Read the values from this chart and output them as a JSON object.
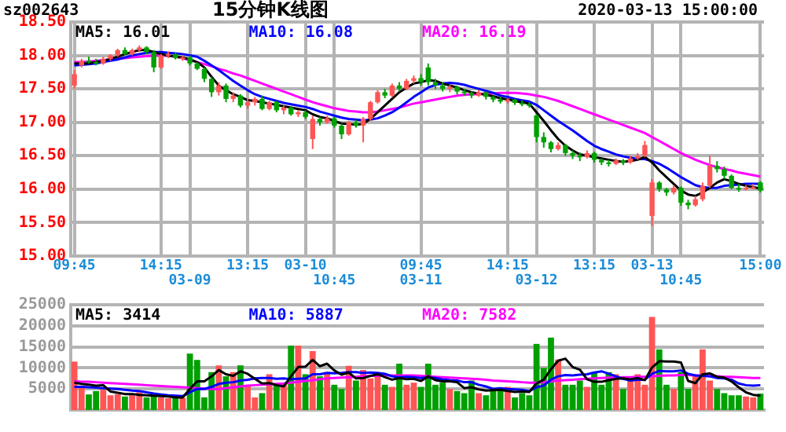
{
  "chart_data": [
    {
      "type": "candlestick",
      "title": "15分钟K线图",
      "subtitle": "2020-03-13 15:00:00",
      "annotations": [
        "sz002643"
      ],
      "categories": [
        "09:45",
        null,
        null,
        null,
        null,
        null,
        null,
        null,
        null,
        null,
        null,
        null,
        "14:15",
        null,
        null,
        null,
        "03-09",
        null,
        null,
        null,
        null,
        null,
        null,
        null,
        "13:15",
        null,
        null,
        null,
        null,
        null,
        null,
        null,
        "03-10",
        null,
        null,
        null,
        "10:45",
        null,
        null,
        null,
        null,
        null,
        null,
        null,
        null,
        null,
        null,
        null,
        "09:45\n03-11",
        null,
        null,
        null,
        null,
        null,
        null,
        null,
        null,
        null,
        null,
        null,
        "14:15",
        null,
        null,
        null,
        "03-12",
        null,
        null,
        null,
        null,
        null,
        null,
        null,
        "13:15",
        null,
        null,
        null,
        null,
        null,
        null,
        null,
        "03-13",
        null,
        null,
        null,
        "10:45",
        null,
        null,
        null,
        null,
        null,
        null,
        null,
        null,
        null,
        null,
        "15:00"
      ],
      "ohlc": [
        [
          17.55,
          17.78,
          17.5,
          17.72
        ],
        [
          17.85,
          17.95,
          17.82,
          17.92
        ],
        [
          17.92,
          17.98,
          17.88,
          17.9
        ],
        [
          17.9,
          17.95,
          17.85,
          17.88
        ],
        [
          17.88,
          17.98,
          17.86,
          17.95
        ],
        [
          17.95,
          18.02,
          17.92,
          18.0
        ],
        [
          18.0,
          18.1,
          17.98,
          18.08
        ],
        [
          18.08,
          18.12,
          18.0,
          18.02
        ],
        [
          18.02,
          18.1,
          18.0,
          18.08
        ],
        [
          18.08,
          18.15,
          18.05,
          18.12
        ],
        [
          18.12,
          18.14,
          18.02,
          18.05
        ],
        [
          18.05,
          18.08,
          17.75,
          17.82
        ],
        [
          17.82,
          18.02,
          17.8,
          18.0
        ],
        [
          18.0,
          18.06,
          17.96,
          18.02
        ],
        [
          18.02,
          18.04,
          17.94,
          17.96
        ],
        [
          17.96,
          18.0,
          17.92,
          17.97
        ],
        [
          17.97,
          18.0,
          17.85,
          17.88
        ],
        [
          17.88,
          17.9,
          17.78,
          17.8
        ],
        [
          17.8,
          17.82,
          17.6,
          17.65
        ],
        [
          17.65,
          17.68,
          17.38,
          17.45
        ],
        [
          17.45,
          17.6,
          17.4,
          17.55
        ],
        [
          17.55,
          17.58,
          17.3,
          17.35
        ],
        [
          17.35,
          17.45,
          17.3,
          17.4
        ],
        [
          17.4,
          17.42,
          17.22,
          17.25
        ],
        [
          17.25,
          17.35,
          17.2,
          17.3
        ],
        [
          17.3,
          17.38,
          17.25,
          17.35
        ],
        [
          17.35,
          17.4,
          17.18,
          17.2
        ],
        [
          17.2,
          17.32,
          17.18,
          17.3
        ],
        [
          17.3,
          17.32,
          17.15,
          17.18
        ],
        [
          17.18,
          17.25,
          17.12,
          17.22
        ],
        [
          17.22,
          17.24,
          17.1,
          17.12
        ],
        [
          17.12,
          17.18,
          17.08,
          17.15
        ],
        [
          17.15,
          17.18,
          17.05,
          17.08
        ],
        [
          16.75,
          17.1,
          16.6,
          17.05
        ],
        [
          17.05,
          17.08,
          16.95,
          17.0
        ],
        [
          17.0,
          17.1,
          16.98,
          17.06
        ],
        [
          17.06,
          17.08,
          16.92,
          16.95
        ],
        [
          16.95,
          16.98,
          16.75,
          16.82
        ],
        [
          16.82,
          17.02,
          16.8,
          17.0
        ],
        [
          17.0,
          17.04,
          16.92,
          16.95
        ],
        [
          16.95,
          17.08,
          16.7,
          17.05
        ],
        [
          17.05,
          17.32,
          17.02,
          17.3
        ],
        [
          17.3,
          17.48,
          17.28,
          17.45
        ],
        [
          17.45,
          17.5,
          17.36,
          17.4
        ],
        [
          17.4,
          17.58,
          17.38,
          17.55
        ],
        [
          17.55,
          17.6,
          17.46,
          17.5
        ],
        [
          17.5,
          17.65,
          17.48,
          17.62
        ],
        [
          17.62,
          17.7,
          17.58,
          17.66
        ],
        [
          17.66,
          17.72,
          17.55,
          17.6
        ],
        [
          17.82,
          17.88,
          17.55,
          17.6
        ],
        [
          17.6,
          17.65,
          17.5,
          17.55
        ],
        [
          17.55,
          17.6,
          17.46,
          17.5
        ],
        [
          17.5,
          17.56,
          17.45,
          17.53
        ],
        [
          17.53,
          17.55,
          17.42,
          17.46
        ],
        [
          17.46,
          17.5,
          17.4,
          17.44
        ],
        [
          17.44,
          17.46,
          17.36,
          17.4
        ],
        [
          17.4,
          17.48,
          17.38,
          17.45
        ],
        [
          17.45,
          17.46,
          17.34,
          17.38
        ],
        [
          17.38,
          17.4,
          17.3,
          17.34
        ],
        [
          17.34,
          17.38,
          17.28,
          17.31
        ],
        [
          17.31,
          17.36,
          17.28,
          17.34
        ],
        [
          17.34,
          17.35,
          17.26,
          17.29
        ],
        [
          17.29,
          17.33,
          17.24,
          17.27
        ],
        [
          17.27,
          17.3,
          17.22,
          17.25
        ],
        [
          17.1,
          17.12,
          16.7,
          16.78
        ],
        [
          16.78,
          16.85,
          16.62,
          16.7
        ],
        [
          16.7,
          16.72,
          16.55,
          16.6
        ],
        [
          16.6,
          16.7,
          16.58,
          16.66
        ],
        [
          16.66,
          16.68,
          16.5,
          16.54
        ],
        [
          16.54,
          16.58,
          16.45,
          16.5
        ],
        [
          16.5,
          16.55,
          16.42,
          16.48
        ],
        [
          16.48,
          16.58,
          16.46,
          16.54
        ],
        [
          16.54,
          16.56,
          16.4,
          16.44
        ],
        [
          16.44,
          16.46,
          16.36,
          16.4
        ],
        [
          16.4,
          16.44,
          16.34,
          16.38
        ],
        [
          16.38,
          16.46,
          16.36,
          16.43
        ],
        [
          16.43,
          16.45,
          16.36,
          16.4
        ],
        [
          16.4,
          16.5,
          16.38,
          16.46
        ],
        [
          16.46,
          16.54,
          16.44,
          16.5
        ],
        [
          16.5,
          16.72,
          16.48,
          16.66
        ],
        [
          15.6,
          16.15,
          15.45,
          16.1
        ],
        [
          16.1,
          16.12,
          15.96,
          16.0
        ],
        [
          16.0,
          16.02,
          15.9,
          15.95
        ],
        [
          15.95,
          16.06,
          15.92,
          16.02
        ],
        [
          16.02,
          16.04,
          15.75,
          15.8
        ],
        [
          15.8,
          15.84,
          15.7,
          15.76
        ],
        [
          15.76,
          15.9,
          15.74,
          15.85
        ],
        [
          15.85,
          16.1,
          15.82,
          16.05
        ],
        [
          16.05,
          16.5,
          16.02,
          16.35
        ],
        [
          16.35,
          16.42,
          16.25,
          16.3
        ],
        [
          16.3,
          16.34,
          16.15,
          16.2
        ],
        [
          16.2,
          16.22,
          16.0,
          16.02
        ],
        [
          16.02,
          16.08,
          15.96,
          16.0
        ],
        [
          16.0,
          16.06,
          15.98,
          16.02
        ],
        [
          16.02,
          16.08,
          16.0,
          16.03
        ],
        [
          16.1,
          16.12,
          15.95,
          15.98
        ]
      ],
      "colors": [
        "#ff5555",
        "#ff5555",
        "#00a000",
        "#00a000",
        "#ff5555",
        "#ff5555",
        "#ff5555",
        "#00a000",
        "#ff5555",
        "#ff5555",
        "#00a000",
        "#00a000",
        "#ff5555",
        "#ff5555",
        "#00a000",
        "#ff5555",
        "#00a000",
        "#00a000",
        "#00a000",
        "#00a000",
        "#ff5555",
        "#00a000",
        "#ff5555",
        "#00a000",
        "#ff5555",
        "#ff5555",
        "#00a000",
        "#ff5555",
        "#00a000",
        "#ff5555",
        "#00a000",
        "#ff5555",
        "#00a000",
        "#ff5555",
        "#00a000",
        "#ff5555",
        "#00a000",
        "#00a000",
        "#ff5555",
        "#00a000",
        "#ff5555",
        "#ff5555",
        "#ff5555",
        "#00a000",
        "#ff5555",
        "#00a000",
        "#ff5555",
        "#ff5555",
        "#00a000",
        "#00a000",
        "#00a000",
        "#00a000",
        "#ff5555",
        "#00a000",
        "#00a000",
        "#00a000",
        "#ff5555",
        "#00a000",
        "#00a000",
        "#00a000",
        "#ff5555",
        "#00a000",
        "#00a000",
        "#00a000",
        "#00a000",
        "#00a000",
        "#00a000",
        "#ff5555",
        "#00a000",
        "#00a000",
        "#00a000",
        "#ff5555",
        "#00a000",
        "#00a000",
        "#00a000",
        "#ff5555",
        "#00a000",
        "#ff5555",
        "#ff5555",
        "#ff5555",
        "#ff5555",
        "#00a000",
        "#00a000",
        "#ff5555",
        "#00a000",
        "#00a000",
        "#ff5555",
        "#ff5555",
        "#ff5555",
        "#00a000",
        "#00a000",
        "#00a000",
        "#00a000",
        "#ff5555",
        "#ff5555",
        "#00a000"
      ],
      "series": [
        {
          "name": "MA5: 16.01",
          "type": "line",
          "color": "#000000",
          "values": [
            17.88,
            17.88,
            17.88,
            17.9,
            17.92,
            17.95,
            17.98,
            18.02,
            18.05,
            18.08,
            18.08,
            18.05,
            18.02,
            18.0,
            17.98,
            17.97,
            17.94,
            17.9,
            17.82,
            17.68,
            17.55,
            17.48,
            17.42,
            17.38,
            17.33,
            17.32,
            17.3,
            17.28,
            17.26,
            17.24,
            17.22,
            17.2,
            17.18,
            17.12,
            17.08,
            17.06,
            17.02,
            16.98,
            16.98,
            16.96,
            16.98,
            17.05,
            17.15,
            17.25,
            17.35,
            17.45,
            17.52,
            17.58,
            17.6,
            17.63,
            17.62,
            17.58,
            17.55,
            17.52,
            17.48,
            17.45,
            17.43,
            17.41,
            17.39,
            17.36,
            17.34,
            17.32,
            17.3,
            17.28,
            17.15,
            17.02,
            16.88,
            16.75,
            16.65,
            16.58,
            16.52,
            16.5,
            16.48,
            16.46,
            16.44,
            16.42,
            16.41,
            16.42,
            16.44,
            16.48,
            16.4,
            16.28,
            16.18,
            16.08,
            15.98,
            15.92,
            15.9,
            15.95,
            16.02,
            16.1,
            16.15,
            16.12,
            16.08,
            16.05,
            16.03,
            16.01
          ]
        },
        {
          "name": "MA10: 16.08",
          "type": "line",
          "color": "#0000ff",
          "values": [
            17.85,
            17.86,
            17.87,
            17.88,
            17.9,
            17.92,
            17.94,
            17.97,
            18.0,
            18.02,
            18.04,
            18.05,
            18.05,
            18.04,
            18.03,
            18.02,
            18.0,
            17.98,
            17.92,
            17.85,
            17.78,
            17.7,
            17.62,
            17.55,
            17.48,
            17.42,
            17.38,
            17.35,
            17.32,
            17.29,
            17.27,
            17.25,
            17.23,
            17.2,
            17.16,
            17.13,
            17.1,
            17.07,
            17.05,
            17.04,
            17.03,
            17.04,
            17.06,
            17.1,
            17.15,
            17.22,
            17.3,
            17.38,
            17.45,
            17.52,
            17.56,
            17.58,
            17.59,
            17.58,
            17.56,
            17.53,
            17.5,
            17.47,
            17.44,
            17.4,
            17.38,
            17.35,
            17.33,
            17.31,
            17.26,
            17.18,
            17.1,
            17.02,
            16.95,
            16.88,
            16.8,
            16.72,
            16.65,
            16.6,
            16.56,
            16.52,
            16.49,
            16.47,
            16.45,
            16.45,
            16.42,
            16.38,
            16.32,
            16.25,
            16.18,
            16.12,
            16.06,
            16.03,
            16.02,
            16.02,
            16.05,
            16.06,
            16.07,
            16.08,
            16.08,
            16.08
          ]
        },
        {
          "name": "MA20: 16.19",
          "type": "line",
          "color": "#ff00ff",
          "values": [
            17.9,
            17.9,
            17.91,
            17.92,
            17.93,
            17.94,
            17.95,
            17.96,
            17.97,
            17.98,
            17.99,
            18.0,
            18.0,
            18.0,
            17.98,
            17.96,
            17.93,
            17.9,
            17.87,
            17.84,
            17.8,
            17.77,
            17.73,
            17.7,
            17.66,
            17.62,
            17.58,
            17.54,
            17.5,
            17.46,
            17.42,
            17.38,
            17.34,
            17.3,
            17.27,
            17.24,
            17.21,
            17.19,
            17.17,
            17.16,
            17.15,
            17.15,
            17.16,
            17.18,
            17.2,
            17.22,
            17.25,
            17.28,
            17.3,
            17.32,
            17.34,
            17.36,
            17.38,
            17.4,
            17.41,
            17.42,
            17.42,
            17.43,
            17.43,
            17.44,
            17.44,
            17.44,
            17.43,
            17.42,
            17.4,
            17.38,
            17.35,
            17.32,
            17.28,
            17.24,
            17.2,
            17.16,
            17.12,
            17.08,
            17.04,
            17.0,
            16.96,
            16.92,
            16.88,
            16.84,
            16.78,
            16.72,
            16.66,
            16.6,
            16.54,
            16.49,
            16.44,
            16.4,
            16.36,
            16.33,
            16.3,
            16.28,
            16.25,
            16.23,
            16.21,
            16.19
          ]
        }
      ],
      "ylim": [
        15,
        18.5
      ],
      "yticks": [
        {
          "value": 15,
          "label": "15.00"
        },
        {
          "value": 15.5,
          "label": "15.50"
        },
        {
          "value": 16,
          "label": "16.00"
        },
        {
          "value": 16.5,
          "label": "16.50"
        },
        {
          "value": 17,
          "label": "17.00"
        },
        {
          "value": 17.5,
          "label": "17.50"
        },
        {
          "value": 18,
          "label": "18.00"
        },
        {
          "value": 18.5,
          "label": "18.50"
        }
      ],
      "grid": true,
      "legend": "top left",
      "marker": "none"
    },
    {
      "type": "bar",
      "categories": [
        null,
        null,
        null,
        null,
        null,
        null,
        null,
        null,
        null,
        null,
        null,
        null,
        null,
        null,
        null,
        null,
        null,
        null,
        null,
        null,
        null,
        null,
        null,
        null,
        null,
        null,
        null,
        null,
        null,
        null,
        null,
        null,
        null,
        null,
        null,
        null,
        null,
        null,
        null,
        null,
        null,
        null,
        null,
        null,
        null,
        null,
        null,
        null,
        null,
        null,
        null,
        null,
        null,
        null,
        null,
        null,
        null,
        null,
        null,
        null,
        null,
        null,
        null,
        null,
        null,
        null,
        null,
        null,
        null,
        null,
        null,
        null,
        null,
        null,
        null,
        null,
        null,
        null,
        null,
        null,
        null,
        null,
        null,
        null,
        null,
        null,
        null,
        null,
        null,
        null,
        null,
        null,
        null,
        null,
        null,
        null
      ],
      "values": [
        11500,
        5300,
        3700,
        4500,
        4800,
        3500,
        3800,
        3200,
        3500,
        4200,
        3000,
        3200,
        3000,
        2800,
        3000,
        2900,
        13400,
        11900,
        3000,
        9000,
        10600,
        8000,
        9000,
        10600,
        6000,
        3000,
        4000,
        8500,
        6000,
        6500,
        15300,
        15300,
        8500,
        14000,
        8000,
        9000,
        6000,
        5000,
        10500,
        7000,
        9500,
        7500,
        8000,
        6000,
        5500,
        11000,
        6000,
        6500,
        5500,
        11000,
        6000,
        6500,
        5000,
        4500,
        4000,
        7000,
        4000,
        3500,
        4500,
        5000,
        5500,
        3000,
        4000,
        3500,
        15700,
        10000,
        17200,
        12000,
        6000,
        6000,
        7000,
        5500,
        9000,
        6000,
        9000,
        8500,
        5000,
        7000,
        8500,
        6000,
        22100,
        14400,
        6000,
        5000,
        9000,
        5000,
        8000,
        14400,
        7000,
        5000,
        4000,
        3500,
        3500,
        3200,
        3000,
        3900
      ],
      "colors": [
        "#ff5555",
        "#ff5555",
        "#00a000",
        "#00a000",
        "#ff5555",
        "#ff5555",
        "#ff5555",
        "#00a000",
        "#ff5555",
        "#ff5555",
        "#00a000",
        "#00a000",
        "#ff5555",
        "#ff5555",
        "#00a000",
        "#ff5555",
        "#00a000",
        "#00a000",
        "#00a000",
        "#00a000",
        "#ff5555",
        "#00a000",
        "#ff5555",
        "#00a000",
        "#ff5555",
        "#ff5555",
        "#00a000",
        "#ff5555",
        "#00a000",
        "#ff5555",
        "#00a000",
        "#ff5555",
        "#00a000",
        "#ff5555",
        "#00a000",
        "#ff5555",
        "#00a000",
        "#00a000",
        "#ff5555",
        "#00a000",
        "#ff5555",
        "#ff5555",
        "#ff5555",
        "#00a000",
        "#ff5555",
        "#00a000",
        "#ff5555",
        "#ff5555",
        "#00a000",
        "#00a000",
        "#00a000",
        "#00a000",
        "#ff5555",
        "#00a000",
        "#00a000",
        "#00a000",
        "#ff5555",
        "#00a000",
        "#00a000",
        "#00a000",
        "#ff5555",
        "#00a000",
        "#00a000",
        "#00a000",
        "#00a000",
        "#00a000",
        "#00a000",
        "#ff5555",
        "#00a000",
        "#00a000",
        "#00a000",
        "#ff5555",
        "#00a000",
        "#00a000",
        "#00a000",
        "#ff5555",
        "#00a000",
        "#ff5555",
        "#ff5555",
        "#ff5555",
        "#ff5555",
        "#00a000",
        "#00a000",
        "#ff5555",
        "#00a000",
        "#00a000",
        "#ff5555",
        "#ff5555",
        "#ff5555",
        "#00a000",
        "#00a000",
        "#00a000",
        "#00a000",
        "#ff5555",
        "#ff5555",
        "#00a000"
      ],
      "series": [
        {
          "name": "MA5: 3414",
          "type": "line",
          "color": "#000000",
          "values": [
            6500,
            6200,
            6000,
            5800,
            5900,
            4400,
            4100,
            3800,
            3800,
            3600,
            3500,
            3400,
            3300,
            3200,
            3000,
            3000,
            5000,
            6800,
            6800,
            8000,
            9500,
            8500,
            8100,
            9200,
            8600,
            7400,
            6300,
            6400,
            5900,
            5600,
            8000,
            10200,
            10300,
            11900,
            10400,
            11000,
            9400,
            8400,
            8900,
            7500,
            7600,
            8100,
            8500,
            7800,
            7200,
            7600,
            7300,
            7400,
            6900,
            8000,
            7100,
            6800,
            6800,
            6600,
            5200,
            5400,
            4900,
            4600,
            4700,
            4800,
            4500,
            4300,
            4400,
            4300,
            6300,
            7200,
            9700,
            11700,
            12200,
            10200,
            9600,
            7300,
            6700,
            6700,
            7100,
            7400,
            7500,
            7300,
            7600,
            7100,
            10100,
            11600,
            11500,
            11500,
            11300,
            6900,
            6400,
            8500,
            8700,
            7900,
            7700,
            6800,
            5400,
            4200,
            3600,
            3400
          ]
        },
        {
          "name": "MA10: 5887",
          "type": "line",
          "color": "#0000ff",
          "values": [
            5500,
            5500,
            5400,
            5300,
            5200,
            5100,
            5000,
            4800,
            4600,
            4500,
            4200,
            3900,
            3700,
            3500,
            3400,
            3300,
            4200,
            5000,
            5000,
            5500,
            6200,
            6500,
            6600,
            7000,
            7200,
            7500,
            7600,
            7600,
            7400,
            7500,
            7300,
            7400,
            7500,
            8500,
            8500,
            8800,
            8700,
            8800,
            9000,
            9000,
            8800,
            8900,
            8800,
            8600,
            8000,
            7800,
            7900,
            7800,
            7600,
            7800,
            7600,
            7300,
            7100,
            7000,
            6600,
            6600,
            6000,
            5600,
            5000,
            5200,
            5000,
            4900,
            4800,
            4500,
            5400,
            5800,
            7200,
            8000,
            8300,
            8200,
            8400,
            8500,
            8900,
            9200,
            8600,
            8000,
            7400,
            7000,
            7200,
            7200,
            8600,
            9300,
            9200,
            9200,
            9400,
            8600,
            8200,
            8100,
            8000,
            7600,
            7500,
            7200,
            6300,
            5900,
            5800,
            5900
          ]
        },
        {
          "name": "MA20: 7582",
          "type": "line",
          "color": "#ff00ff",
          "values": [
            6800,
            6700,
            6700,
            6600,
            6500,
            6400,
            6300,
            6200,
            6100,
            6000,
            5900,
            5800,
            5700,
            5600,
            5500,
            5400,
            5300,
            5200,
            5100,
            5000,
            5000,
            5200,
            5400,
            5600,
            5800,
            5900,
            6000,
            6100,
            6200,
            6300,
            6500,
            6700,
            6900,
            7100,
            7300,
            7500,
            7600,
            7700,
            7800,
            7900,
            8000,
            8100,
            8100,
            8200,
            8200,
            8200,
            8200,
            8200,
            8100,
            8000,
            7900,
            7800,
            7700,
            7600,
            7500,
            7400,
            7300,
            7200,
            7000,
            6900,
            6800,
            6700,
            6600,
            6500,
            6500,
            6600,
            6800,
            7000,
            7100,
            7200,
            7300,
            7400,
            7500,
            7600,
            7700,
            7700,
            7800,
            7800,
            7900,
            7900,
            8000,
            8100,
            8200,
            8200,
            8300,
            8300,
            8200,
            8100,
            8000,
            8000,
            7900,
            7900,
            7800,
            7700,
            7600,
            7600
          ]
        }
      ],
      "ylim": [
        0,
        25000
      ],
      "yticks": [
        5000,
        10000,
        15000,
        20000,
        25000
      ],
      "grid": "y",
      "legend": "top left",
      "marker": "none",
      "tick_labels": "y"
    }
  ]
}
